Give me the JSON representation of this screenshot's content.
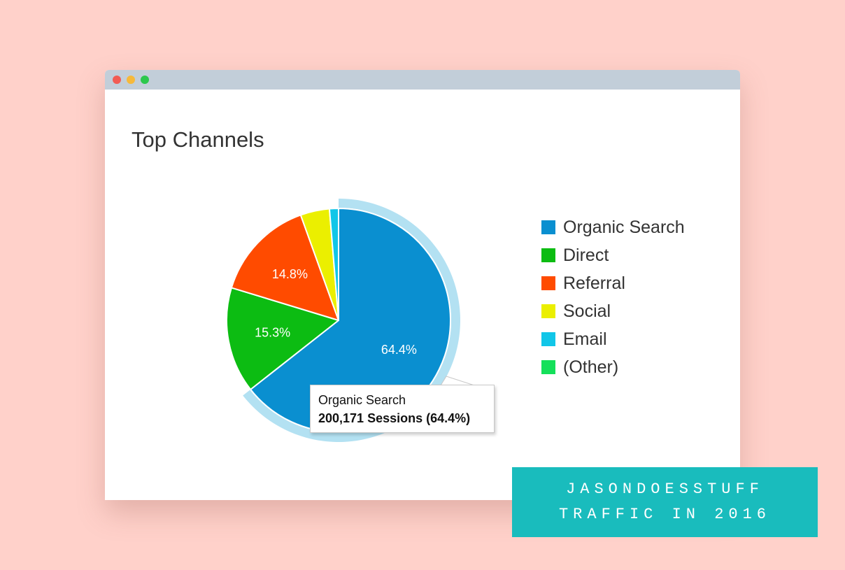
{
  "window": {
    "title": "Top Channels"
  },
  "chart_data": {
    "type": "pie",
    "title": "Top Channels",
    "legend_position": "right",
    "highlighted": "Organic Search",
    "slices": [
      {
        "name": "Organic Search",
        "value": 64.4,
        "label": "64.4%",
        "color": "#0a8fd0"
      },
      {
        "name": "Direct",
        "value": 15.3,
        "label": "15.3%",
        "color": "#0cbc12"
      },
      {
        "name": "Referral",
        "value": 14.8,
        "label": "14.8%",
        "color": "#ff4b00"
      },
      {
        "name": "Social",
        "value": 4.2,
        "label": "",
        "color": "#ebef00"
      },
      {
        "name": "Email",
        "value": 1.3,
        "label": "",
        "color": "#11c6e8"
      },
      {
        "name": "(Other)",
        "value": 0.0,
        "label": "",
        "color": "#14e05a"
      }
    ],
    "tooltip": {
      "name": "Organic Search",
      "value": "200,171 Sessions (64.4%)"
    }
  },
  "badge": {
    "line1": "JASONDOESSTUFF",
    "line2": "TRAFFIC IN 2016"
  },
  "colors": {
    "background": "#ffd1ca",
    "highlight_ring": "#b3e1f2",
    "badge": "#19bcbd"
  }
}
